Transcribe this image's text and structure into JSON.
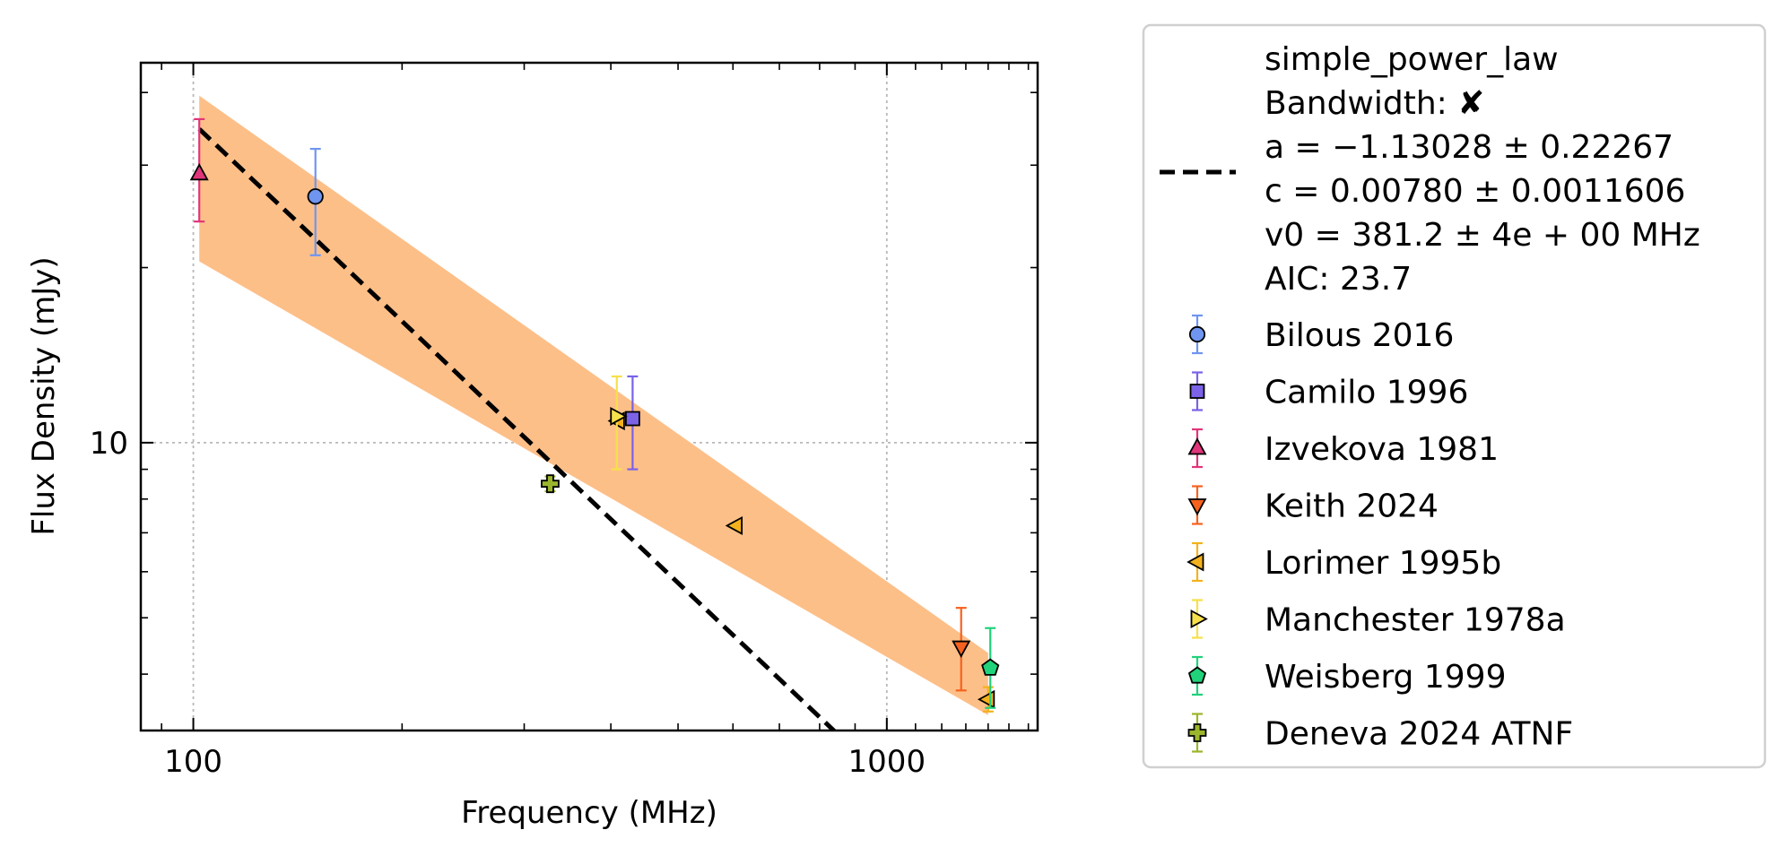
{
  "chart_data": {
    "type": "scatter",
    "title": "",
    "xlabel": "Frequency (MHz)",
    "ylabel": "Flux Density (mJy)",
    "xscale": "log",
    "yscale": "log",
    "xlim": [
      84,
      1650
    ],
    "ylim": [
      3.2,
      45
    ],
    "x_ticks": [
      {
        "value": 100,
        "label": "100"
      },
      {
        "value": 1000,
        "label": "1000"
      }
    ],
    "y_ticks": [
      {
        "value": 10,
        "label": "10"
      }
    ],
    "grid": true,
    "legend_position": "outside-right",
    "fit": {
      "model": "simple_power_law",
      "bandwidth_label": "Bandwidth: ✘",
      "param_a": "a = −1.13028 ± 0.22267",
      "param_c": "c = 0.00780 ± 0.0011606",
      "param_v0": "v0 = 381.2 ± 4e + 00 MHz",
      "aic": "AIC: 23.7",
      "a": -1.13028,
      "c": 0.0078,
      "v0": 381.2,
      "line_color": "#000000",
      "band_color": "#fdbf88",
      "x_range": [
        102,
        1400
      ],
      "band_lower_ends": [
        20.5,
        3.4
      ],
      "band_upper_ends": [
        39.5,
        4.35
      ]
    },
    "series": [
      {
        "name": "Bilous 2016",
        "marker": "circle",
        "color": "#6f95f0",
        "err_color": "#6f95f0",
        "points": [
          {
            "x": 150,
            "y": 26.5,
            "ylo": 21.0,
            "yhi": 32.0
          }
        ]
      },
      {
        "name": "Camilo 1996",
        "marker": "square",
        "color": "#7b62e6",
        "err_color": "#7b62e6",
        "points": [
          {
            "x": 430,
            "y": 11.0,
            "ylo": 9.0,
            "yhi": 13.0
          }
        ]
      },
      {
        "name": "Izvekova 1981",
        "marker": "triangle-up",
        "color": "#e0357a",
        "err_color": "#e0357a",
        "points": [
          {
            "x": 102,
            "y": 29.0,
            "ylo": 24.0,
            "yhi": 36.0
          }
        ]
      },
      {
        "name": "Keith 2024",
        "marker": "triangle-down",
        "color": "#f5621f",
        "err_color": "#f5621f",
        "points": [
          {
            "x": 1280,
            "y": 4.45,
            "ylo": 3.75,
            "yhi": 5.2
          }
        ]
      },
      {
        "name": "Lorimer 1995b",
        "marker": "triangle-left",
        "color": "#f3b21d",
        "err_color": "#f3b21d",
        "points": [
          {
            "x": 410,
            "y": 10.9,
            "ylo": 10.9,
            "yhi": 10.9
          },
          {
            "x": 606,
            "y": 7.2,
            "ylo": 7.2,
            "yhi": 7.2
          },
          {
            "x": 1400,
            "y": 3.62,
            "ylo": 3.45,
            "yhi": 3.8
          }
        ]
      },
      {
        "name": "Manchester 1978a",
        "marker": "triangle-right",
        "color": "#f7e04b",
        "err_color": "#f7e04b",
        "points": [
          {
            "x": 408,
            "y": 11.1,
            "ylo": 9.0,
            "yhi": 13.0
          }
        ]
      },
      {
        "name": "Weisberg 1999",
        "marker": "pentagon",
        "color": "#20d27a",
        "err_color": "#20d27a",
        "points": [
          {
            "x": 1410,
            "y": 4.1,
            "ylo": 3.5,
            "yhi": 4.8
          }
        ]
      },
      {
        "name": "Deneva 2024 ATNF",
        "marker": "plus",
        "color": "#9bb52d",
        "err_color": "#9bb52d",
        "points": [
          {
            "x": 327,
            "y": 8.5,
            "ylo": 8.25,
            "yhi": 8.75
          }
        ]
      }
    ]
  }
}
